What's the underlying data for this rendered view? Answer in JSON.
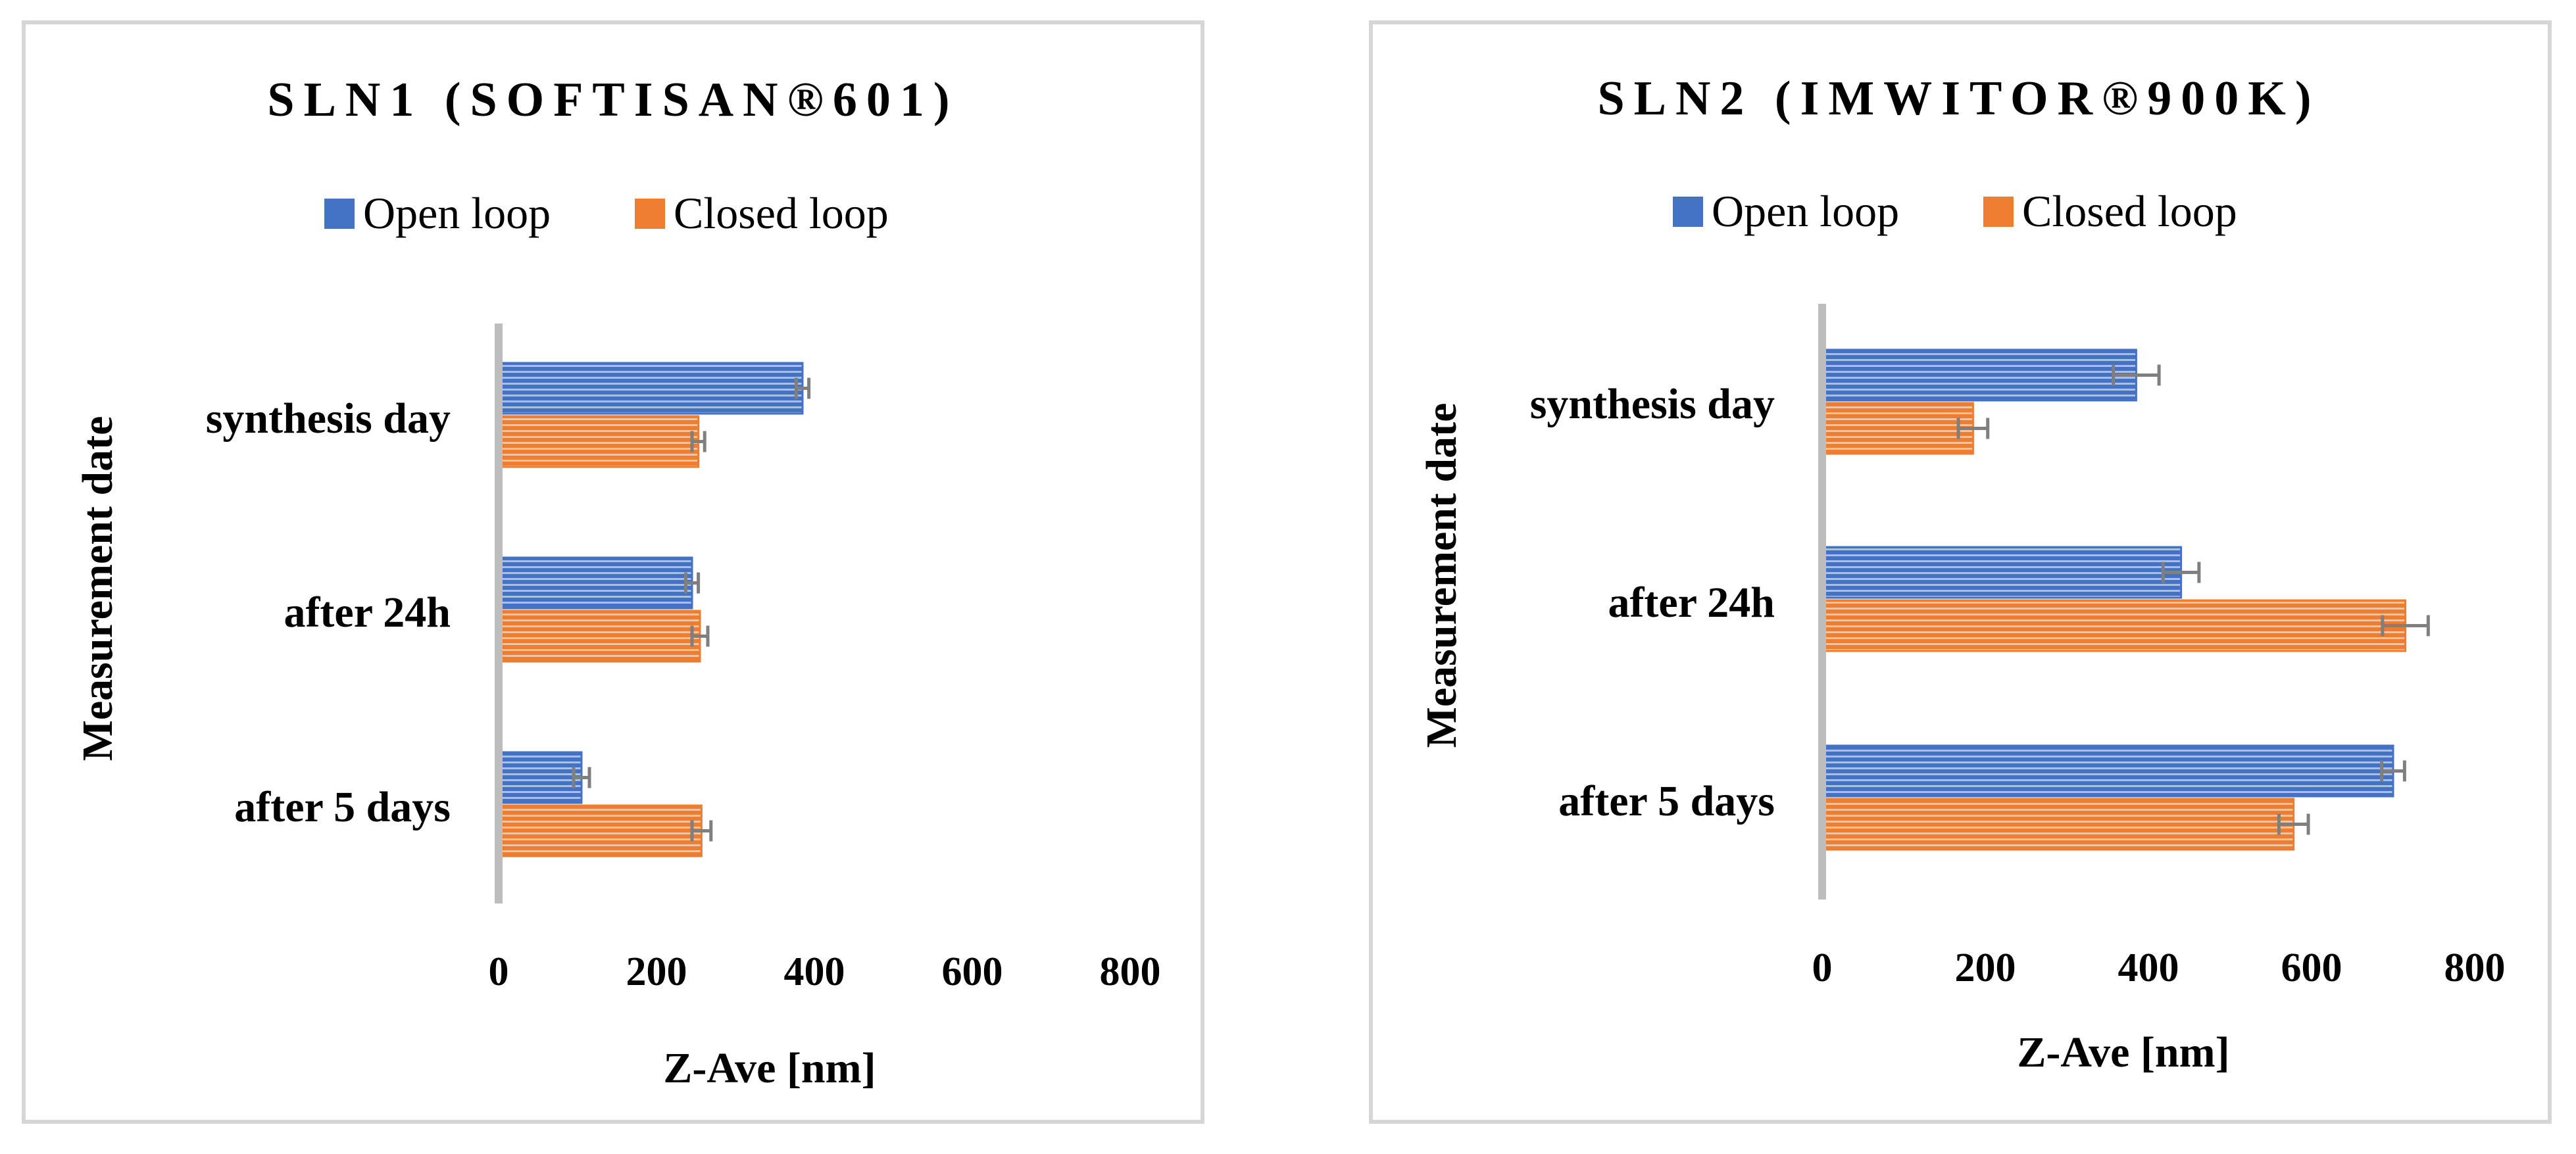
{
  "colors": {
    "open_loop": "#4472c4",
    "closed_loop": "#ed7d31",
    "axis": "#bdbdbd",
    "error_bar": "#7f7f7f"
  },
  "chart_data": [
    {
      "type": "bar",
      "orientation": "horizontal",
      "title": "SLN1 (SOFTISAN®601)",
      "xlabel": "Z-Ave [nm]",
      "ylabel": "Measurement date",
      "xlim": [
        0,
        800
      ],
      "x_ticks": [
        "0",
        "200",
        "400",
        "600",
        "800"
      ],
      "legend_position": "top",
      "categories": [
        "synthesis day",
        "after 24h",
        "after 5 days"
      ],
      "series": [
        {
          "name": "Open loop",
          "values": [
            385,
            245,
            105
          ],
          "errors": [
            8,
            8,
            10
          ]
        },
        {
          "name": "Closed loop",
          "values": [
            253,
            255,
            257
          ],
          "errors": [
            8,
            10,
            12
          ]
        }
      ]
    },
    {
      "type": "bar",
      "orientation": "horizontal",
      "title": "SLN2 (IMWITOR®900K)",
      "xlabel": "Z-Ave [nm]",
      "ylabel": "Measurement date",
      "xlim": [
        0,
        800
      ],
      "x_ticks": [
        "0",
        "200",
        "400",
        "600",
        "800"
      ],
      "legend_position": "top",
      "categories": [
        "synthesis day",
        "after 24h",
        "after 5 days"
      ],
      "series": [
        {
          "name": "Open loop",
          "values": [
            385,
            440,
            700
          ],
          "errors": [
            28,
            22,
            14
          ]
        },
        {
          "name": "Closed loop",
          "values": [
            185,
            715,
            578
          ],
          "errors": [
            18,
            28,
            18
          ]
        }
      ]
    }
  ]
}
